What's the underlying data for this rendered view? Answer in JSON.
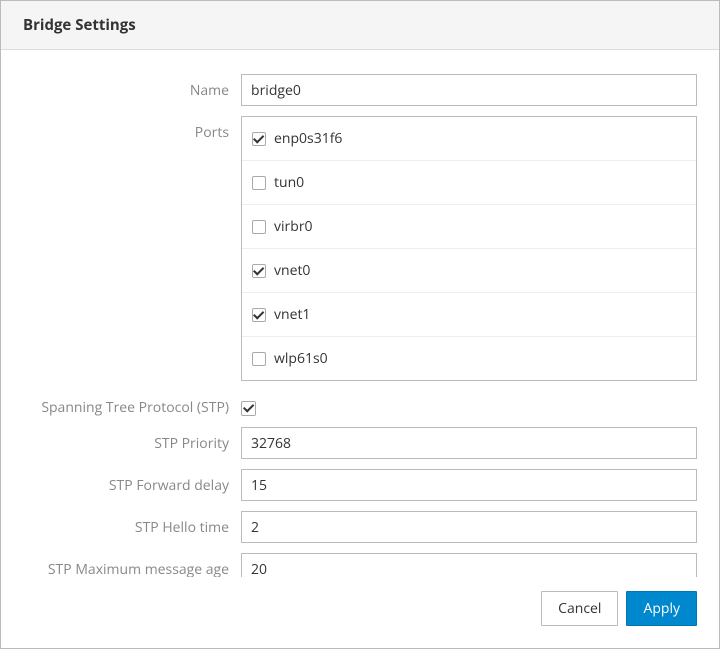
{
  "dialog": {
    "title": "Bridge Settings"
  },
  "form": {
    "name": {
      "label": "Name",
      "value": "bridge0"
    },
    "ports": {
      "label": "Ports",
      "items": [
        {
          "name": "enp0s31f6",
          "checked": true
        },
        {
          "name": "tun0",
          "checked": false
        },
        {
          "name": "virbr0",
          "checked": false
        },
        {
          "name": "vnet0",
          "checked": true
        },
        {
          "name": "vnet1",
          "checked": true
        },
        {
          "name": "wlp61s0",
          "checked": false
        }
      ]
    },
    "stp": {
      "label": "Spanning Tree Protocol (STP)",
      "checked": true
    },
    "stp_priority": {
      "label": "STP Priority",
      "value": "32768"
    },
    "stp_forward_delay": {
      "label": "STP Forward delay",
      "value": "15"
    },
    "stp_hello_time": {
      "label": "STP Hello time",
      "value": "2"
    },
    "stp_max_age": {
      "label": "STP Maximum message age",
      "value": "20"
    }
  },
  "buttons": {
    "cancel": "Cancel",
    "apply": "Apply"
  },
  "colors": {
    "header_bg": "#f5f5f5",
    "border": "#bbbbbb",
    "label_text": "#888888",
    "text": "#333333",
    "primary": "#0088ce",
    "primary_border": "#0077b3"
  }
}
